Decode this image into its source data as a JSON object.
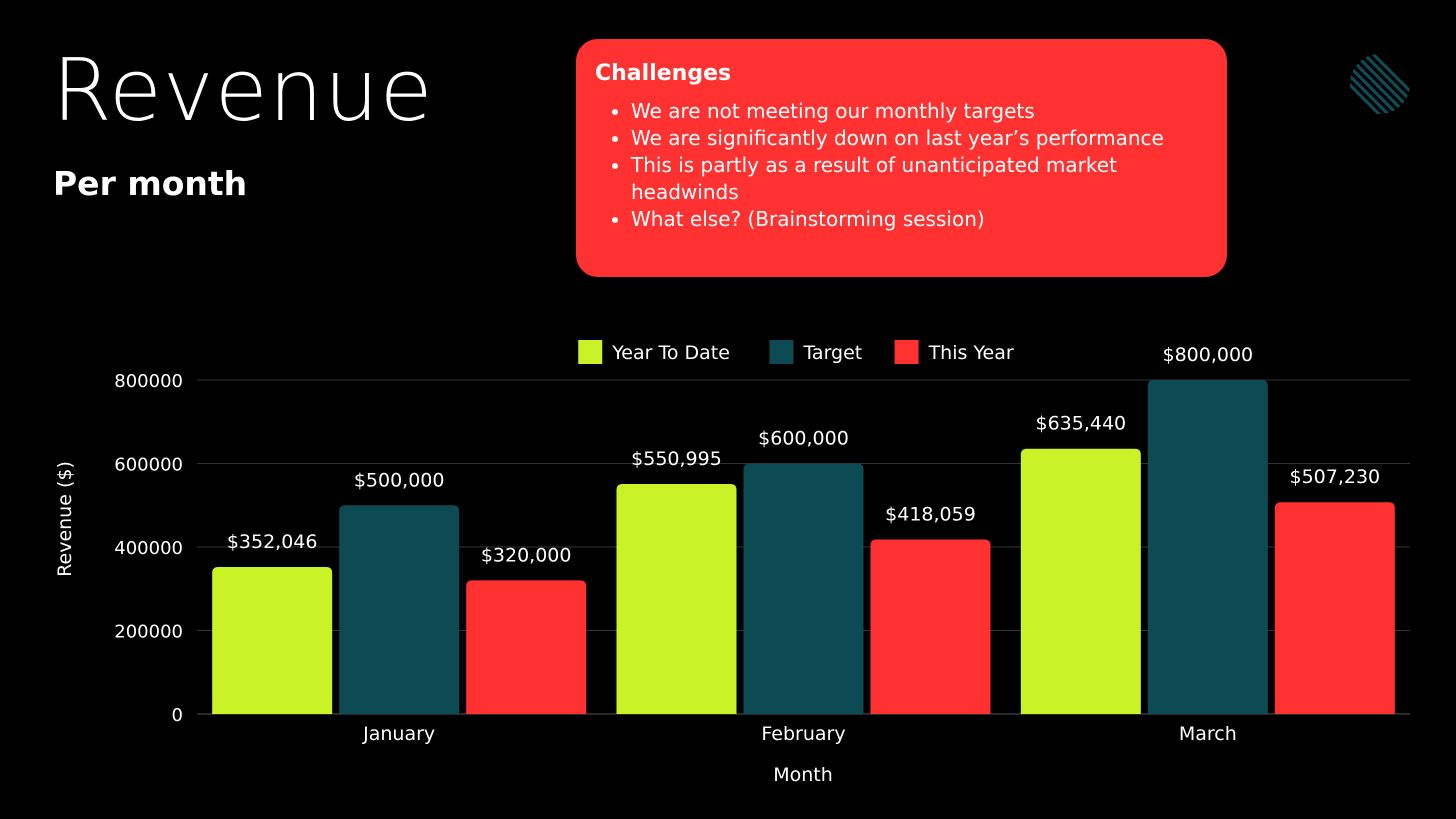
{
  "slide": {
    "title": "Revenue",
    "subtitle": "Per month"
  },
  "challenges": {
    "heading": "Challenges",
    "items": [
      "We are not meeting our monthly targets",
      "We are significantly down on last year’s performance",
      "This is partly as a result of unanticipated market headwinds",
      "What else? (Brainstorming session)"
    ],
    "background": "#ff3131"
  },
  "decoration": {
    "icon": "diagonal-stripes-icon",
    "color": "#0e4c56"
  },
  "chart_data": {
    "type": "bar",
    "categories": [
      "January",
      "February",
      "March"
    ],
    "series": [
      {
        "name": "Year To Date",
        "color": "#c9f227",
        "values": [
          352046,
          550995,
          635440
        ],
        "labels": [
          "$352,046",
          "$550,995",
          "$635,440"
        ]
      },
      {
        "name": "Target",
        "color": "#0d4b54",
        "values": [
          500000,
          600000,
          800000
        ],
        "labels": [
          "$500,000",
          "$600,000",
          "$800,000"
        ]
      },
      {
        "name": "This Year",
        "color": "#ff3131",
        "values": [
          320000,
          418059,
          507230
        ],
        "labels": [
          "$320,000",
          "$418,059",
          "$507,230"
        ]
      }
    ],
    "xlabel": "Month",
    "ylabel": "Revenue ($)",
    "ylim": [
      0,
      800000
    ],
    "yticks": [
      "0",
      "200000",
      "400000",
      "600000",
      "800000"
    ],
    "grid": true,
    "legend": "top-center"
  }
}
